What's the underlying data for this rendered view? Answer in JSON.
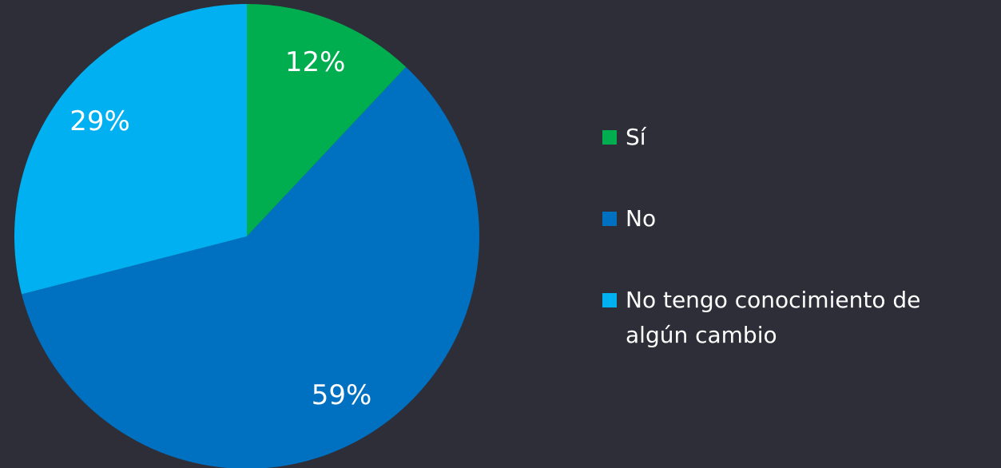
{
  "chart_data": {
    "type": "pie",
    "categories": [
      "Sí",
      "No",
      "No tengo conocimiento de algún cambio"
    ],
    "values": [
      12,
      59,
      29
    ],
    "value_labels": [
      "12%",
      "59%",
      "29%"
    ],
    "colors": [
      "#00ae4f",
      "#0070c0",
      "#00b0f0"
    ],
    "legend": "right"
  }
}
